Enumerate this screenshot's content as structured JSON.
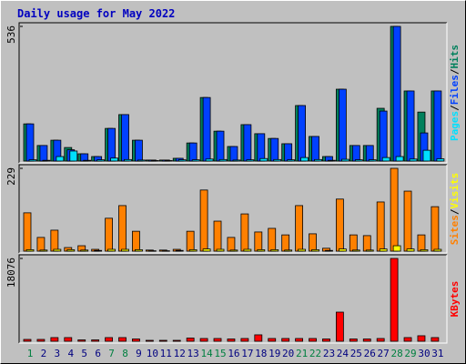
{
  "chart_data": {
    "type": "bar",
    "title": "Daily usage for May 2022",
    "separator": "/",
    "categories": [
      "1",
      "2",
      "3",
      "4",
      "5",
      "6",
      "7",
      "8",
      "9",
      "10",
      "11",
      "12",
      "13",
      "14",
      "15",
      "16",
      "17",
      "18",
      "19",
      "20",
      "21",
      "22",
      "23",
      "24",
      "25",
      "26",
      "27",
      "28",
      "29",
      "30",
      "31"
    ],
    "category_colors": [
      "#008040",
      "#000080",
      "#000080",
      "#000080",
      "#000080",
      "#000080",
      "#008040",
      "#008040",
      "#000080",
      "#000080",
      "#000080",
      "#000080",
      "#000080",
      "#008040",
      "#008040",
      "#000080",
      "#000080",
      "#000080",
      "#000080",
      "#000080",
      "#008040",
      "#008040",
      "#000080",
      "#000080",
      "#000080",
      "#000080",
      "#000080",
      "#008040",
      "#008040",
      "#000080",
      "#000080"
    ],
    "panels": [
      {
        "ylim": [
          0,
          536
        ],
        "yticks": [
          536
        ],
        "legend_order": "reverse",
        "series": [
          {
            "name": "Hits",
            "color": "#00805c",
            "values": [
              148,
              62,
              83,
              54,
              29,
              18,
              130,
              185,
              83,
              4,
              4,
              11,
              72,
              253,
              119,
              58,
              145,
              109,
              90,
              69,
              221,
              98,
              18,
              286,
              62,
              62,
              210,
              536,
              279,
              195,
              279
            ]
          },
          {
            "name": "Files",
            "color": "#0040ff",
            "values": [
              148,
              62,
              83,
              45,
              29,
              18,
              130,
              185,
              83,
              4,
              4,
              11,
              72,
              253,
              119,
              58,
              145,
              109,
              90,
              69,
              221,
              98,
              18,
              286,
              62,
              62,
              199,
              536,
              279,
              112,
              279
            ]
          },
          {
            "name": "Pages",
            "color": "#00e0ff",
            "values": [
              5,
              3,
              18,
              40,
              3,
              5,
              12,
              6,
              4,
              2,
              2,
              5,
              5,
              8,
              6,
              4,
              5,
              10,
              6,
              5,
              14,
              6,
              3,
              7,
              5,
              5,
              14,
              18,
              8,
              43,
              9
            ]
          }
        ]
      },
      {
        "ylim": [
          0,
          229
        ],
        "yticks": [
          229
        ],
        "legend_order": "normal",
        "series": [
          {
            "name": "Sites",
            "color": "#ff8000",
            "values": [
              106,
              38,
              58,
              10,
              15,
              5,
              91,
              126,
              55,
              3,
              3,
              5,
              55,
              169,
              83,
              38,
              103,
              53,
              63,
              45,
              126,
              48,
              8,
              144,
              45,
              43,
              136,
              229,
              166,
              45,
              123
            ]
          },
          {
            "name": "Visits",
            "color": "#ffff00",
            "values": [
              4,
              3,
              5,
              4,
              3,
              2,
              5,
              5,
              4,
              1,
              1,
              2,
              4,
              6,
              5,
              3,
              5,
              4,
              4,
              3,
              5,
              4,
              2,
              6,
              3,
              3,
              6,
              15,
              6,
              4,
              5
            ]
          }
        ]
      },
      {
        "ylim": [
          0,
          18076
        ],
        "yticks": [
          18076
        ],
        "legend_order": "normal",
        "series": [
          {
            "name": "KBytes",
            "color": "#ff0000",
            "values": [
              400,
              400,
              800,
              800,
              300,
              300,
              800,
              800,
              500,
              200,
              200,
              200,
              700,
              600,
              600,
              500,
              600,
              1400,
              600,
              600,
              600,
              600,
              500,
              6355,
              500,
              500,
              600,
              18076,
              800,
              1200,
              800
            ]
          }
        ]
      }
    ]
  }
}
